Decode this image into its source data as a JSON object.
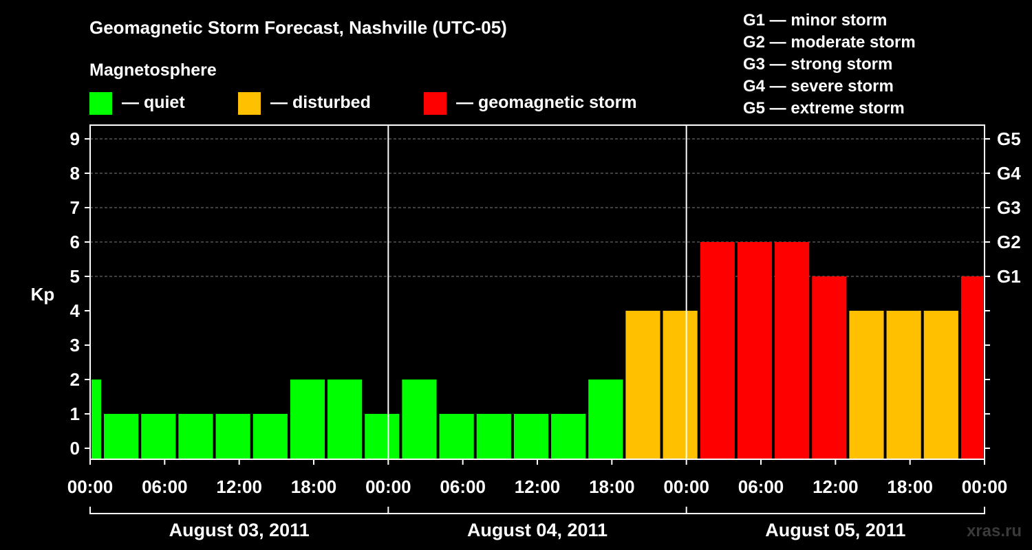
{
  "chart_data": {
    "type": "bar",
    "title": "Geomagnetic Storm Forecast, Nashville (UTC-05)",
    "legend_title": "Magnetosphere",
    "legend": [
      {
        "label": "— quiet",
        "color": "#00ff00"
      },
      {
        "label": "— disturbed",
        "color": "#ffc000"
      },
      {
        "label": "— geomagnetic storm",
        "color": "#ff0000"
      }
    ],
    "storm_scale": [
      "G1 — minor storm",
      "G2 — moderate storm",
      "G3 — strong storm",
      "G4 — severe storm",
      "G5 — extreme storm"
    ],
    "ylabel": "Kp",
    "ylim": [
      0,
      9
    ],
    "yticks": [
      "0",
      "1",
      "2",
      "3",
      "4",
      "5",
      "6",
      "7",
      "8",
      "9"
    ],
    "right_ticks": [
      {
        "kp": 5,
        "label": "G1"
      },
      {
        "kp": 6,
        "label": "G2"
      },
      {
        "kp": 7,
        "label": "G3"
      },
      {
        "kp": 8,
        "label": "G4"
      },
      {
        "kp": 9,
        "label": "G5"
      }
    ],
    "grid": "horizontal-dashed",
    "xlim_hours": [
      0,
      72
    ],
    "xticks": [
      {
        "hour": 0,
        "label": "00:00"
      },
      {
        "hour": 6,
        "label": "06:00"
      },
      {
        "hour": 12,
        "label": "12:00"
      },
      {
        "hour": 18,
        "label": "18:00"
      },
      {
        "hour": 24,
        "label": "00:00"
      },
      {
        "hour": 30,
        "label": "06:00"
      },
      {
        "hour": 36,
        "label": "12:00"
      },
      {
        "hour": 42,
        "label": "18:00"
      },
      {
        "hour": 48,
        "label": "00:00"
      },
      {
        "hour": 54,
        "label": "06:00"
      },
      {
        "hour": 60,
        "label": "12:00"
      },
      {
        "hour": 66,
        "label": "18:00"
      },
      {
        "hour": 72,
        "label": "00:00"
      }
    ],
    "days": [
      {
        "label": "August 03, 2011",
        "start": 0,
        "end": 24
      },
      {
        "label": "August 04, 2011",
        "start": 24,
        "end": 48
      },
      {
        "label": "August 05, 2011",
        "start": 48,
        "end": 72
      }
    ],
    "bars": [
      {
        "start": 0,
        "end": 1,
        "kp": 2
      },
      {
        "start": 1,
        "end": 4,
        "kp": 1
      },
      {
        "start": 4,
        "end": 7,
        "kp": 1
      },
      {
        "start": 7,
        "end": 10,
        "kp": 1
      },
      {
        "start": 10,
        "end": 13,
        "kp": 1
      },
      {
        "start": 13,
        "end": 16,
        "kp": 1
      },
      {
        "start": 16,
        "end": 19,
        "kp": 2
      },
      {
        "start": 19,
        "end": 22,
        "kp": 2
      },
      {
        "start": 22,
        "end": 25,
        "kp": 1
      },
      {
        "start": 25,
        "end": 28,
        "kp": 2
      },
      {
        "start": 28,
        "end": 31,
        "kp": 1
      },
      {
        "start": 31,
        "end": 34,
        "kp": 1
      },
      {
        "start": 34,
        "end": 37,
        "kp": 1
      },
      {
        "start": 37,
        "end": 40,
        "kp": 1
      },
      {
        "start": 40,
        "end": 43,
        "kp": 2
      },
      {
        "start": 43,
        "end": 46,
        "kp": 4
      },
      {
        "start": 46,
        "end": 49,
        "kp": 4
      },
      {
        "start": 49,
        "end": 52,
        "kp": 6
      },
      {
        "start": 52,
        "end": 55,
        "kp": 6
      },
      {
        "start": 55,
        "end": 58,
        "kp": 6
      },
      {
        "start": 58,
        "end": 61,
        "kp": 5
      },
      {
        "start": 61,
        "end": 64,
        "kp": 4
      },
      {
        "start": 64,
        "end": 67,
        "kp": 4
      },
      {
        "start": 67,
        "end": 70,
        "kp": 4
      },
      {
        "start": 70,
        "end": 72,
        "kp": 5
      }
    ],
    "colors": {
      "quiet": "#00ff00",
      "disturbed": "#ffc000",
      "storm": "#ff0000"
    }
  },
  "watermark": "xras.ru"
}
